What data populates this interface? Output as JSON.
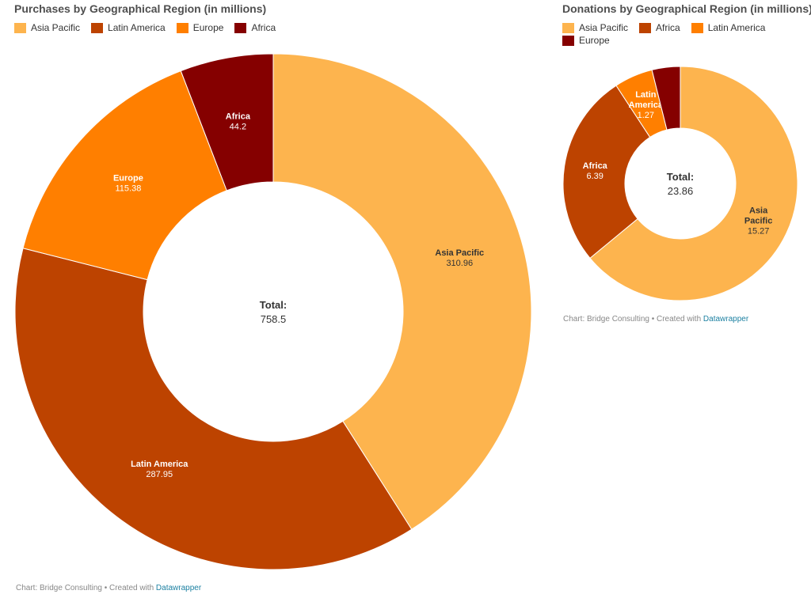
{
  "chart_data": [
    {
      "type": "pie",
      "title": "Purchases by Geographical Region (in millions)",
      "categories": [
        "Asia Pacific",
        "Latin America",
        "Europe",
        "Africa"
      ],
      "values": [
        310.96,
        287.95,
        115.38,
        44.2
      ],
      "colors": [
        "#fdb44e",
        "#bd4300",
        "#ff7f00",
        "#850000"
      ],
      "center_label": "Total:",
      "center_value": "758.5",
      "legend": {
        "placement": "top-left",
        "items": [
          {
            "label": "Asia Pacific",
            "color": "#fdb44e"
          },
          {
            "label": "Latin America",
            "color": "#bd4300"
          },
          {
            "label": "Europe",
            "color": "#ff7f00"
          },
          {
            "label": "Africa",
            "color": "#850000"
          }
        ]
      },
      "slice_labels": [
        {
          "name": "Asia Pacific",
          "value": "310.96"
        },
        {
          "name": "Latin America",
          "value": "287.95"
        },
        {
          "name": "Europe",
          "value": "115.38"
        },
        {
          "name": "Africa",
          "value": "44.2"
        }
      ],
      "source": {
        "text": "Chart: Bridge Consulting • Created with ",
        "link": "Datawrapper"
      }
    },
    {
      "type": "pie",
      "title": "Donations by Geographical Region (in millions)",
      "categories": [
        "Asia Pacific",
        "Africa",
        "Latin America",
        "Europe"
      ],
      "values": [
        15.27,
        6.39,
        1.27,
        0.93
      ],
      "colors": [
        "#fdb44e",
        "#bd4300",
        "#ff7f00",
        "#850000"
      ],
      "center_label": "Total:",
      "center_value": "23.86",
      "legend": {
        "placement": "top-left",
        "items": [
          {
            "label": "Asia Pacific",
            "color": "#fdb44e"
          },
          {
            "label": "Africa",
            "color": "#bd4300"
          },
          {
            "label": "Latin America",
            "color": "#ff7f00"
          },
          {
            "label": "Europe",
            "color": "#850000"
          }
        ]
      },
      "slice_labels": [
        {
          "name": "Asia Pacific",
          "value": "15.27"
        },
        {
          "name": "Africa",
          "value": "6.39"
        },
        {
          "name": "Latin America",
          "value": "1.27"
        },
        {
          "name": "",
          "value": ""
        }
      ],
      "source": {
        "text": "Chart: Bridge Consulting • Created with ",
        "link": "Datawrapper"
      }
    }
  ]
}
